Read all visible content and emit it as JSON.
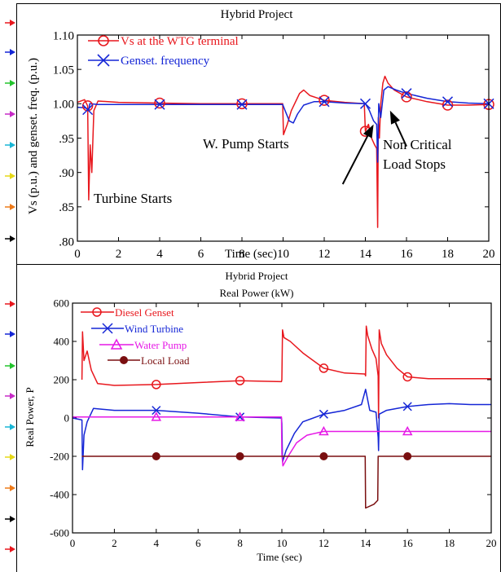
{
  "colors": {
    "red": "#e8171d",
    "blue": "#1526d6",
    "magenta": "#e619e6",
    "darkred": "#7a0f10",
    "margin_arrows": [
      "#e8171d",
      "#1526d6",
      "#22c42c",
      "#c72ac7",
      "#18b6d6",
      "#e6d816",
      "#ee7a18",
      "#000000"
    ]
  },
  "chart_data": [
    {
      "type": "line",
      "title": "Hybrid Project",
      "xlabel": "Time (sec)",
      "ylabel": "Vs (p.u.) and genset. freq. (p.u.)",
      "xlim": [
        0,
        20
      ],
      "ylim": [
        0.8,
        1.1
      ],
      "x_ticks": [
        "0",
        "2",
        "4",
        "6",
        "8",
        "10",
        "12",
        "14",
        "16",
        "18",
        "20"
      ],
      "y_ticks": [
        ".80",
        ".85",
        ".90",
        ".95",
        "1.00",
        "1.05",
        "1.10"
      ],
      "grid": false,
      "legend_position": "top-left",
      "series": [
        {
          "name": "Vs at the WTG terminal",
          "color": "red",
          "marker": "circle",
          "marker_x": [
            0.5,
            4,
            8,
            12,
            14,
            16,
            18,
            20
          ],
          "points": [
            [
              0,
              1.002
            ],
            [
              0.35,
              1.006
            ],
            [
              0.5,
              0.997
            ],
            [
              0.55,
              0.86
            ],
            [
              0.62,
              0.94
            ],
            [
              0.7,
              0.9
            ],
            [
              0.8,
              0.99
            ],
            [
              1.0,
              1.004
            ],
            [
              2,
              1.002
            ],
            [
              4,
              1.001
            ],
            [
              6,
              1.0
            ],
            [
              8,
              1.0
            ],
            [
              9.98,
              1.0
            ],
            [
              10.02,
              0.955
            ],
            [
              10.2,
              0.97
            ],
            [
              10.4,
              0.99
            ],
            [
              10.8,
              1.015
            ],
            [
              11.0,
              1.02
            ],
            [
              11.3,
              1.012
            ],
            [
              11.7,
              1.008
            ],
            [
              12,
              1.005
            ],
            [
              13,
              1.002
            ],
            [
              13.95,
              1.0
            ],
            [
              14.0,
              0.96
            ],
            [
              14.15,
              0.97
            ],
            [
              14.3,
              0.95
            ],
            [
              14.45,
              0.94
            ],
            [
              14.55,
              0.935
            ],
            [
              14.6,
              0.82
            ],
            [
              14.63,
              0.98
            ],
            [
              14.68,
              0.95
            ],
            [
              14.75,
              1.0
            ],
            [
              14.85,
              1.03
            ],
            [
              14.95,
              1.04
            ],
            [
              15.1,
              1.03
            ],
            [
              15.4,
              1.02
            ],
            [
              16,
              1.01
            ],
            [
              17,
              1.003
            ],
            [
              18,
              0.998
            ],
            [
              19,
              0.998
            ],
            [
              20,
              0.999
            ]
          ]
        },
        {
          "name": "Genset. frequency",
          "color": "blue",
          "marker": "x",
          "marker_x": [
            0.5,
            4,
            8,
            12,
            14,
            16,
            18,
            20
          ],
          "points": [
            [
              0,
              0.995
            ],
            [
              0.4,
              0.994
            ],
            [
              0.55,
              0.99
            ],
            [
              0.6,
              1.0
            ],
            [
              1,
              0.999
            ],
            [
              2,
              0.999
            ],
            [
              4,
              0.999
            ],
            [
              6,
              0.999
            ],
            [
              8,
              0.999
            ],
            [
              9.98,
              0.999
            ],
            [
              10.1,
              0.99
            ],
            [
              10.3,
              0.975
            ],
            [
              10.5,
              0.972
            ],
            [
              10.7,
              0.985
            ],
            [
              11,
              0.998
            ],
            [
              11.5,
              1.003
            ],
            [
              12,
              1.003
            ],
            [
              13,
              1.001
            ],
            [
              14.0,
              1.0
            ],
            [
              14.2,
              0.99
            ],
            [
              14.4,
              0.975
            ],
            [
              14.55,
              0.97
            ],
            [
              14.6,
              0.915
            ],
            [
              14.65,
              1.0
            ],
            [
              14.75,
              0.98
            ],
            [
              14.9,
              1.02
            ],
            [
              15.1,
              1.025
            ],
            [
              15.5,
              1.02
            ],
            [
              16,
              1.015
            ],
            [
              17,
              1.008
            ],
            [
              18,
              1.003
            ],
            [
              19,
              1.001
            ],
            [
              20,
              1.0
            ]
          ]
        }
      ],
      "annotations": [
        {
          "text": "Turbine Starts",
          "x": 1.0,
          "y": 0.836
        },
        {
          "text": "W. Pump Starts",
          "x": 7.85,
          "y": 0.927
        },
        {
          "text": "Non Critical",
          "x": 16.4,
          "y": 0.924
        },
        {
          "text": "Load Stops",
          "x": 16.4,
          "y": 0.894
        }
      ],
      "arrows": [
        {
          "from": [
            12.9,
            0.883
          ],
          "to": [
            14.4,
            0.97
          ]
        },
        {
          "from": [
            16.0,
            0.938
          ],
          "to": [
            15.2,
            0.99
          ]
        }
      ]
    },
    {
      "type": "line",
      "title": "Hybrid Project",
      "subtitle": "Real Power (kW)",
      "xlabel": "Time (sec)",
      "ylabel": "Real Power, P",
      "xlim": [
        0,
        20
      ],
      "ylim": [
        -600,
        600
      ],
      "x_ticks": [
        "0",
        "2",
        "4",
        "6",
        "8",
        "10",
        "12",
        "14",
        "16",
        "18",
        "20"
      ],
      "y_ticks": [
        "-600",
        "-400",
        "-200",
        "0",
        "200",
        "400",
        "600"
      ],
      "grid": false,
      "legend_position": "top-left",
      "series": [
        {
          "name": "Diesel Genset",
          "color": "red",
          "marker": "circle",
          "marker_x": [
            4,
            8,
            12,
            16
          ],
          "points": [
            [
              0.45,
              200
            ],
            [
              0.48,
              450
            ],
            [
              0.55,
              300
            ],
            [
              0.7,
              350
            ],
            [
              0.9,
              250
            ],
            [
              1.2,
              180
            ],
            [
              2,
              170
            ],
            [
              4,
              175
            ],
            [
              6,
              185
            ],
            [
              8,
              195
            ],
            [
              9.98,
              190
            ],
            [
              10.0,
              200
            ],
            [
              10.03,
              460
            ],
            [
              10.1,
              420
            ],
            [
              10.4,
              400
            ],
            [
              11,
              340
            ],
            [
              12,
              260
            ],
            [
              13,
              235
            ],
            [
              13.97,
              230
            ],
            [
              14.0,
              220
            ],
            [
              14.03,
              480
            ],
            [
              14.1,
              430
            ],
            [
              14.3,
              360
            ],
            [
              14.5,
              310
            ],
            [
              14.6,
              220
            ],
            [
              14.62,
              0
            ],
            [
              14.65,
              460
            ],
            [
              14.75,
              390
            ],
            [
              15,
              330
            ],
            [
              15.5,
              260
            ],
            [
              16,
              215
            ],
            [
              17,
              205
            ],
            [
              18,
              205
            ],
            [
              19,
              205
            ],
            [
              20,
              205
            ]
          ]
        },
        {
          "name": "Wind Turbine",
          "color": "blue",
          "marker": "x",
          "marker_x": [
            4,
            8,
            12,
            16
          ],
          "points": [
            [
              0,
              0
            ],
            [
              0.45,
              -10
            ],
            [
              0.48,
              -270
            ],
            [
              0.55,
              -90
            ],
            [
              0.7,
              -20
            ],
            [
              1,
              50
            ],
            [
              2,
              40
            ],
            [
              4,
              40
            ],
            [
              6,
              25
            ],
            [
              8,
              5
            ],
            [
              9.98,
              0
            ],
            [
              10.0,
              -30
            ],
            [
              10.03,
              -230
            ],
            [
              10.2,
              -170
            ],
            [
              10.6,
              -80
            ],
            [
              11,
              -20
            ],
            [
              12,
              20
            ],
            [
              13,
              40
            ],
            [
              13.8,
              70
            ],
            [
              14.0,
              150
            ],
            [
              14.2,
              40
            ],
            [
              14.5,
              30
            ],
            [
              14.6,
              -100
            ],
            [
              14.62,
              -170
            ],
            [
              14.65,
              20
            ],
            [
              15,
              40
            ],
            [
              16,
              60
            ],
            [
              17,
              70
            ],
            [
              18,
              75
            ],
            [
              19,
              70
            ],
            [
              20,
              70
            ]
          ]
        },
        {
          "name": "Water Pump",
          "color": "magenta",
          "marker": "triangle",
          "marker_x": [
            4,
            8,
            12,
            16
          ],
          "points": [
            [
              0,
              5
            ],
            [
              2,
              5
            ],
            [
              4,
              5
            ],
            [
              6,
              5
            ],
            [
              8,
              5
            ],
            [
              9.98,
              5
            ],
            [
              10.0,
              -190
            ],
            [
              10.05,
              -250
            ],
            [
              10.3,
              -200
            ],
            [
              10.7,
              -130
            ],
            [
              11.2,
              -90
            ],
            [
              12,
              -70
            ],
            [
              14,
              -70
            ],
            [
              16,
              -70
            ],
            [
              18,
              -70
            ],
            [
              20,
              -70
            ]
          ]
        },
        {
          "name": "Local Load",
          "color": "darkred",
          "marker": "dot",
          "marker_x": [
            4,
            8,
            12,
            16
          ],
          "points": [
            [
              0.45,
              -200
            ],
            [
              2,
              -200
            ],
            [
              4,
              -200
            ],
            [
              6,
              -200
            ],
            [
              8,
              -200
            ],
            [
              10,
              -200
            ],
            [
              12,
              -200
            ],
            [
              13.98,
              -200
            ],
            [
              14.0,
              -470
            ],
            [
              14.4,
              -450
            ],
            [
              14.58,
              -430
            ],
            [
              14.6,
              -200
            ],
            [
              16,
              -200
            ],
            [
              18,
              -200
            ],
            [
              20,
              -200
            ]
          ]
        }
      ]
    }
  ]
}
